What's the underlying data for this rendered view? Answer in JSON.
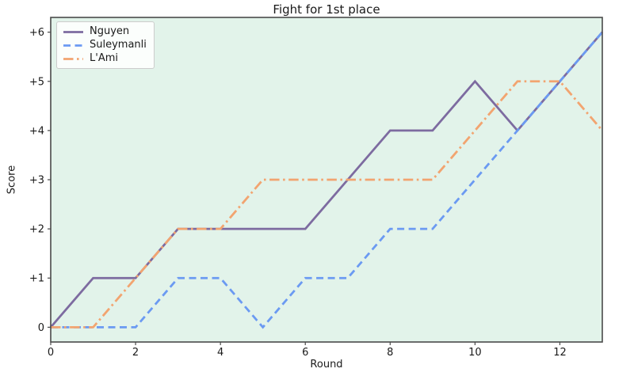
{
  "chart_data": {
    "type": "line",
    "title": "Fight for 1st place",
    "xlabel": "Round",
    "ylabel": "Score",
    "x": [
      0,
      1,
      2,
      3,
      4,
      5,
      6,
      7,
      8,
      9,
      10,
      11,
      12,
      13
    ],
    "series": [
      {
        "name": "Nguyen",
        "color": "#7d6ba0",
        "style": "solid",
        "values": [
          0,
          1,
          1,
          2,
          2,
          2,
          2,
          3,
          4,
          4,
          5,
          4,
          5,
          6
        ]
      },
      {
        "name": "Suleymanli",
        "color": "#6b9af2",
        "style": "dashed",
        "values": [
          0,
          0,
          0,
          1,
          1,
          0,
          1,
          1,
          2,
          2,
          3,
          4,
          5,
          6
        ]
      },
      {
        "name": "L'Ami",
        "color": "#f2a470",
        "style": "dashdot",
        "values": [
          0,
          0,
          1,
          2,
          2,
          3,
          3,
          3,
          3,
          3,
          4,
          5,
          5,
          4
        ]
      }
    ],
    "xlim": [
      0,
      13
    ],
    "ylim": [
      -0.3,
      6.3
    ],
    "x_ticks": [
      {
        "v": 0,
        "label": "0"
      },
      {
        "v": 2,
        "label": "2"
      },
      {
        "v": 4,
        "label": "4"
      },
      {
        "v": 6,
        "label": "6"
      },
      {
        "v": 8,
        "label": "8"
      },
      {
        "v": 10,
        "label": "10"
      },
      {
        "v": 12,
        "label": "12"
      }
    ],
    "y_ticks": [
      {
        "v": 0,
        "label": "0"
      },
      {
        "v": 1,
        "label": "+1"
      },
      {
        "v": 2,
        "label": "+2"
      },
      {
        "v": 3,
        "label": "+3"
      },
      {
        "v": 4,
        "label": "+4"
      },
      {
        "v": 5,
        "label": "+5"
      },
      {
        "v": 6,
        "label": "+6"
      }
    ],
    "legend_position": "upper left",
    "grid": false,
    "plot_bg_color": "#e2f3ea",
    "figure_bg_color": "#ffffff",
    "spine_color": "#4a4a4a",
    "text_color": "#1a1a1a"
  }
}
